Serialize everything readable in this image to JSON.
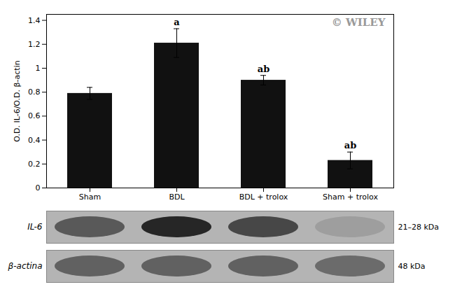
{
  "chart_data": {
    "type": "bar",
    "categories": [
      "Sham",
      "BDL",
      "BDL + trolox",
      "Sham + trolox"
    ],
    "values": [
      0.79,
      1.21,
      0.9,
      0.23
    ],
    "errors": [
      0.05,
      0.12,
      0.04,
      0.07
    ],
    "color": "#111111",
    "ylabel": "O.D. IL-6/O.D. β-actin",
    "ylim": [
      0,
      1.45
    ],
    "yticks": [
      0,
      0.2,
      0.4,
      0.6,
      0.8,
      1,
      1.2,
      1.4
    ],
    "grid": false,
    "annotations": [
      {
        "category": "BDL",
        "text": "a"
      },
      {
        "category": "BDL + trolox",
        "text": "ab"
      },
      {
        "category": "Sham + trolox",
        "text": "ab"
      },
      {
        "text": "© WILEY",
        "color": "#999999"
      }
    ],
    "blots": [
      {
        "label": "IL-6",
        "kda_label": "21–28 kDa",
        "colors": [
          "#595959",
          "#262626",
          "#474747",
          "#9e9e9e"
        ]
      },
      {
        "label": "β-actina",
        "kda_label": "48 kDa",
        "colors": [
          "#616161",
          "#616161",
          "#616161",
          "#6b6b6b"
        ]
      }
    ]
  }
}
